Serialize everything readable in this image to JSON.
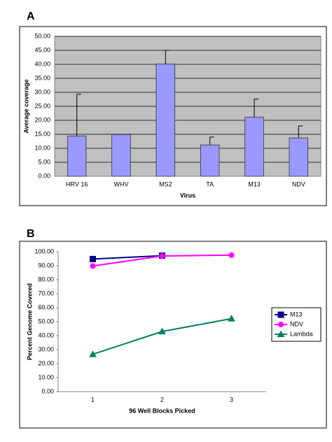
{
  "chart_data": [
    {
      "type": "bar",
      "title": "A",
      "x_label": "Virus",
      "y_label": "Average coverage",
      "categories": [
        "HRV 16",
        "WHV",
        "MS2",
        "TA",
        "M13",
        "NDV"
      ],
      "values": [
        14.4,
        14.9,
        40.1,
        11.2,
        21.1,
        13.7
      ],
      "errors": [
        14.9,
        null,
        4.9,
        2.8,
        6.5,
        4.3
      ],
      "color": "#9999ff",
      "background": "#c0c0c0",
      "grid": true,
      "ylim": [
        0,
        50
      ],
      "yticks": [
        {
          "value": 0,
          "label": "0.00"
        },
        {
          "value": 5,
          "label": "5.00"
        },
        {
          "value": 10,
          "label": "10.00"
        },
        {
          "value": 15,
          "label": "15.00"
        },
        {
          "value": 20,
          "label": "20.00"
        },
        {
          "value": 25,
          "label": "25.00"
        },
        {
          "value": 30,
          "label": "30.00"
        },
        {
          "value": 35,
          "label": "35.00"
        },
        {
          "value": 40,
          "label": "40.00"
        },
        {
          "value": 45,
          "label": "45.00"
        },
        {
          "value": 50,
          "label": "50.00"
        }
      ]
    },
    {
      "type": "line",
      "title": "B",
      "x_label": "96 Well Blocks Picked",
      "y_label": "Percent Genome Covered",
      "categories": [
        "1",
        "2",
        "3"
      ],
      "series": [
        {
          "name": "M13",
          "color": "#000080",
          "marker": "square",
          "values": [
            94.8,
            97.2,
            null
          ]
        },
        {
          "name": "NDV",
          "color": "#ff00ff",
          "marker": "circle",
          "values": [
            89.8,
            97.0,
            97.6
          ]
        },
        {
          "name": "Lambda",
          "color": "#008060",
          "marker": "triangle",
          "values": [
            26.7,
            43.0,
            52.2
          ]
        }
      ],
      "background": "#ffffff",
      "grid": false,
      "legend": "right",
      "ylim": [
        0,
        100
      ],
      "yticks": [
        {
          "value": 0,
          "label": "0.00"
        },
        {
          "value": 10,
          "label": "10.00"
        },
        {
          "value": 20,
          "label": "20.00"
        },
        {
          "value": 30,
          "label": "30.00"
        },
        {
          "value": 40,
          "label": "40.00"
        },
        {
          "value": 50,
          "label": "50.00"
        },
        {
          "value": 60,
          "label": "60.00"
        },
        {
          "value": 70,
          "label": "70.00"
        },
        {
          "value": 80,
          "label": "80.00"
        },
        {
          "value": 90,
          "label": "90.00"
        },
        {
          "value": 100,
          "label": "100.00"
        }
      ]
    }
  ]
}
